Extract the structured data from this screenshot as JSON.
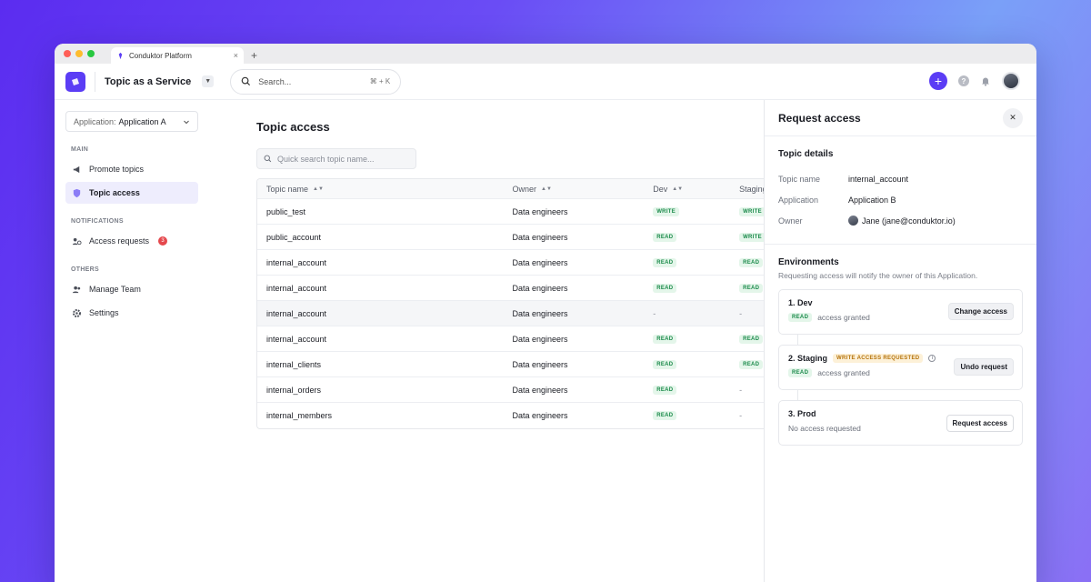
{
  "browser": {
    "tab_title": "Conduktor Platform",
    "tab_close": "×",
    "new_tab": "+"
  },
  "topbar": {
    "title": "Topic as a Service",
    "search_placeholder": "Search...",
    "search_shortcut": "⌘ + K",
    "plus_label": "+",
    "help_label": "?"
  },
  "sidebar": {
    "app_select_label": "Application:",
    "app_select_value": "Application A",
    "sections": [
      {
        "label": "MAIN"
      },
      {
        "label": "NOTIFICATIONS"
      },
      {
        "label": "OTHERS"
      }
    ],
    "items": [
      {
        "label": "Promote topics"
      },
      {
        "label": "Topic access"
      },
      {
        "label": "Access requests",
        "badge": "3"
      },
      {
        "label": "Manage Team"
      },
      {
        "label": "Settings"
      }
    ]
  },
  "main": {
    "title": "Topic access",
    "search_placeholder": "Quick search topic name...",
    "columns": [
      "Topic name",
      "Owner",
      "Dev",
      "Staging"
    ],
    "rows": [
      {
        "name": "public_test",
        "owner": "Data engineers",
        "dev": "WRITE",
        "staging": "WRITE"
      },
      {
        "name": "public_account",
        "owner": "Data engineers",
        "dev": "READ",
        "staging": "WRITE"
      },
      {
        "name": "internal_account",
        "owner": "Data engineers",
        "dev": "READ",
        "staging": "READ"
      },
      {
        "name": "internal_account",
        "owner": "Data engineers",
        "dev": "READ",
        "staging": "READ"
      },
      {
        "name": "internal_account",
        "owner": "Data engineers",
        "dev": "-",
        "staging": "-"
      },
      {
        "name": "internal_account",
        "owner": "Data engineers",
        "dev": "READ",
        "staging": "READ"
      },
      {
        "name": "internal_clients",
        "owner": "Data engineers",
        "dev": "READ",
        "staging": "READ"
      },
      {
        "name": "internal_orders",
        "owner": "Data engineers",
        "dev": "READ",
        "staging": "-"
      },
      {
        "name": "internal_members",
        "owner": "Data engineers",
        "dev": "READ",
        "staging": "-"
      }
    ]
  },
  "panel": {
    "title": "Request access",
    "close": "✕",
    "details_title": "Topic details",
    "details": [
      {
        "k": "Topic name",
        "v": "internal_account"
      },
      {
        "k": "Application",
        "v": "Application B"
      },
      {
        "k": "Owner",
        "v": "Jane (jane@conduktor.io)"
      }
    ],
    "env_title": "Environments",
    "env_sub": "Requesting access will notify the owner of this Application.",
    "envs": [
      {
        "name": "1. Dev",
        "pill": "READ",
        "status": "access granted",
        "button": "Change access"
      },
      {
        "name": "2. Staging",
        "warn": "WRITE ACCESS REQUESTED",
        "info": "i",
        "pill": "READ",
        "status": "access granted",
        "button": "Undo request"
      },
      {
        "name": "3. Prod",
        "status": "No access requested",
        "button": "Request access"
      }
    ]
  },
  "colors": {
    "accent": "#5b3df5",
    "success_text": "#1a8a4a",
    "success_bg": "#e4f6ea",
    "warn_text": "#b5720a",
    "warn_bg": "#fdf1d8",
    "badge": "#e5484d"
  }
}
